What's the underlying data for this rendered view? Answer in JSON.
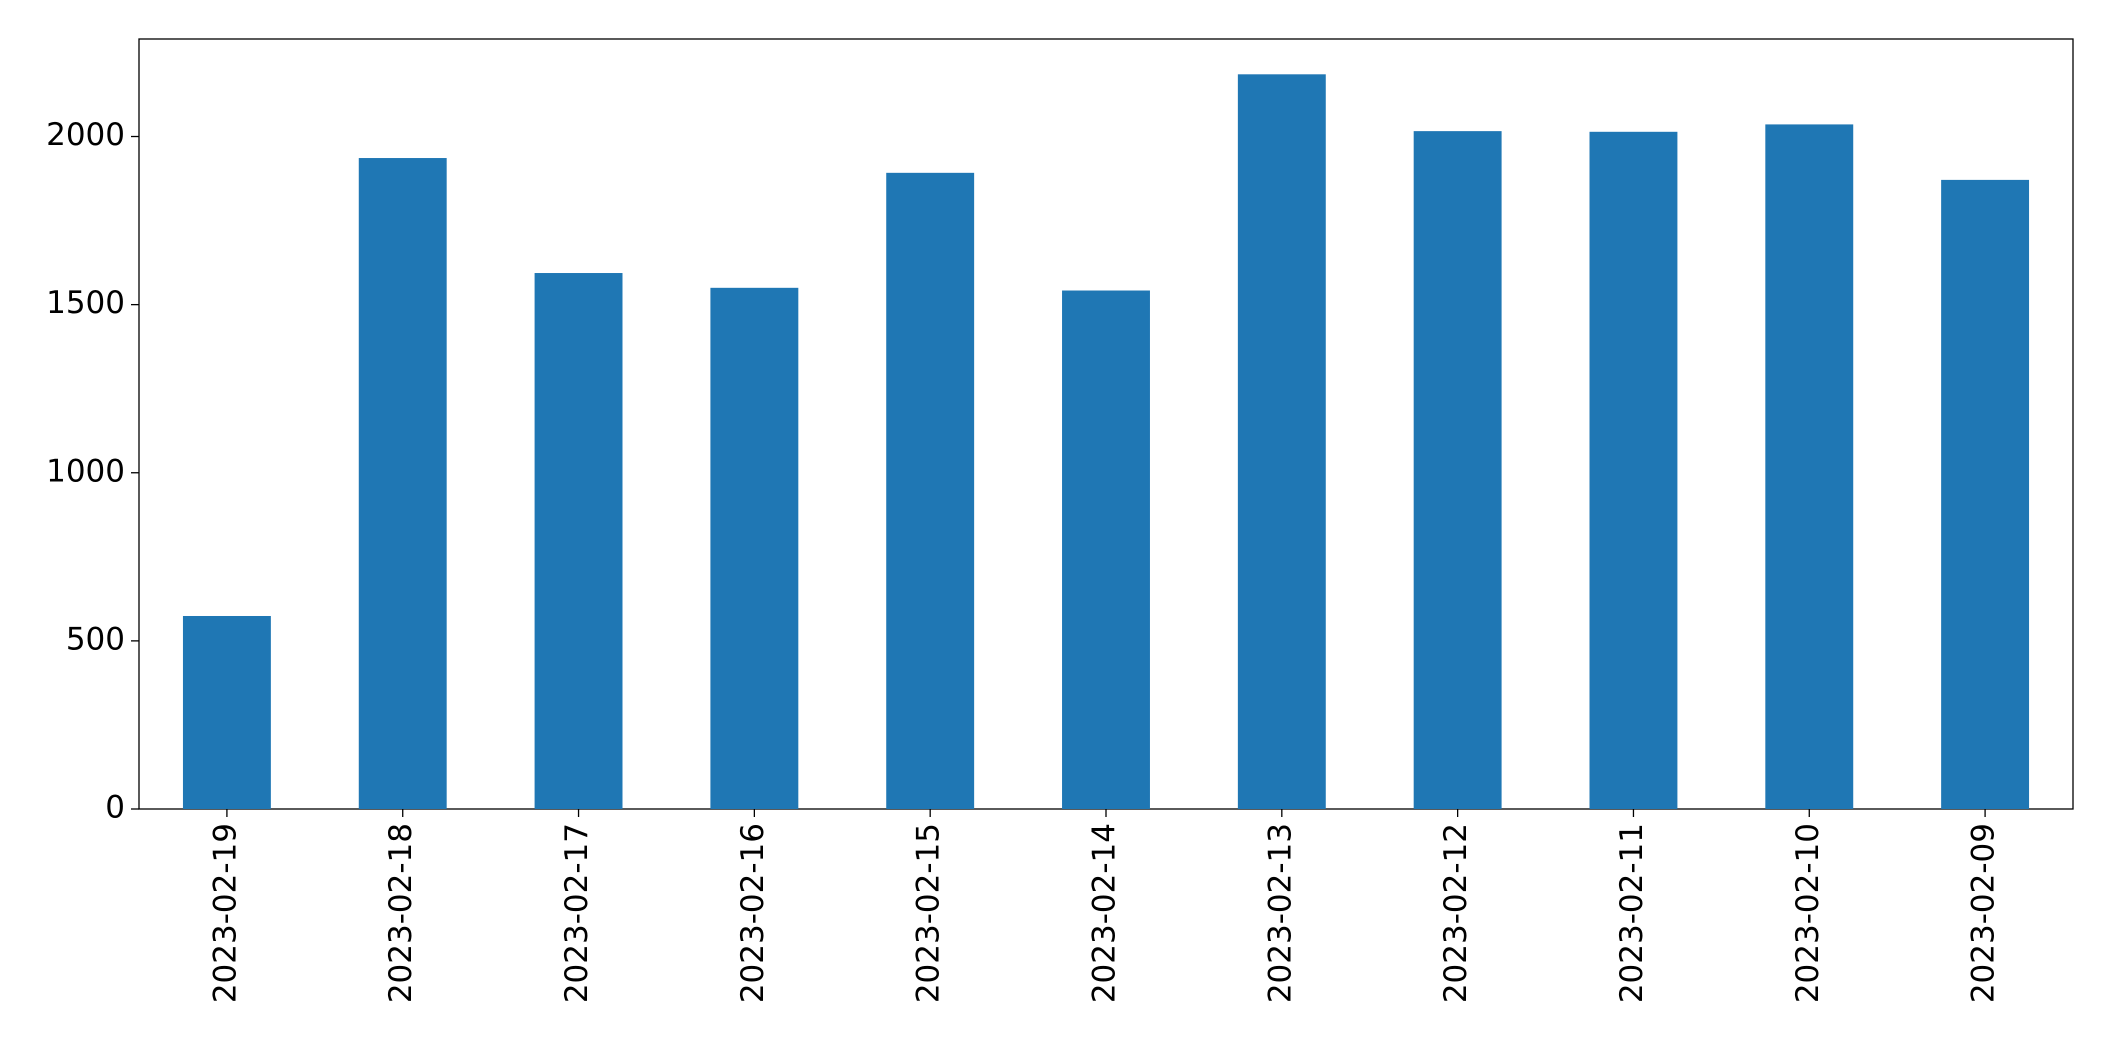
{
  "chart_data": {
    "type": "bar",
    "categories": [
      "2023-02-19",
      "2023-02-18",
      "2023-02-17",
      "2023-02-16",
      "2023-02-15",
      "2023-02-14",
      "2023-02-13",
      "2023-02-12",
      "2023-02-11",
      "2023-02-10",
      "2023-02-09"
    ],
    "values": [
      574,
      1936,
      1594,
      1550,
      1892,
      1542,
      2185,
      2016,
      2014,
      2036,
      1871
    ],
    "color": "#1f77b4",
    "ylim": [
      0,
      2290
    ],
    "yticks": [
      0,
      500,
      1000,
      1500,
      2000
    ],
    "grid": false
  }
}
